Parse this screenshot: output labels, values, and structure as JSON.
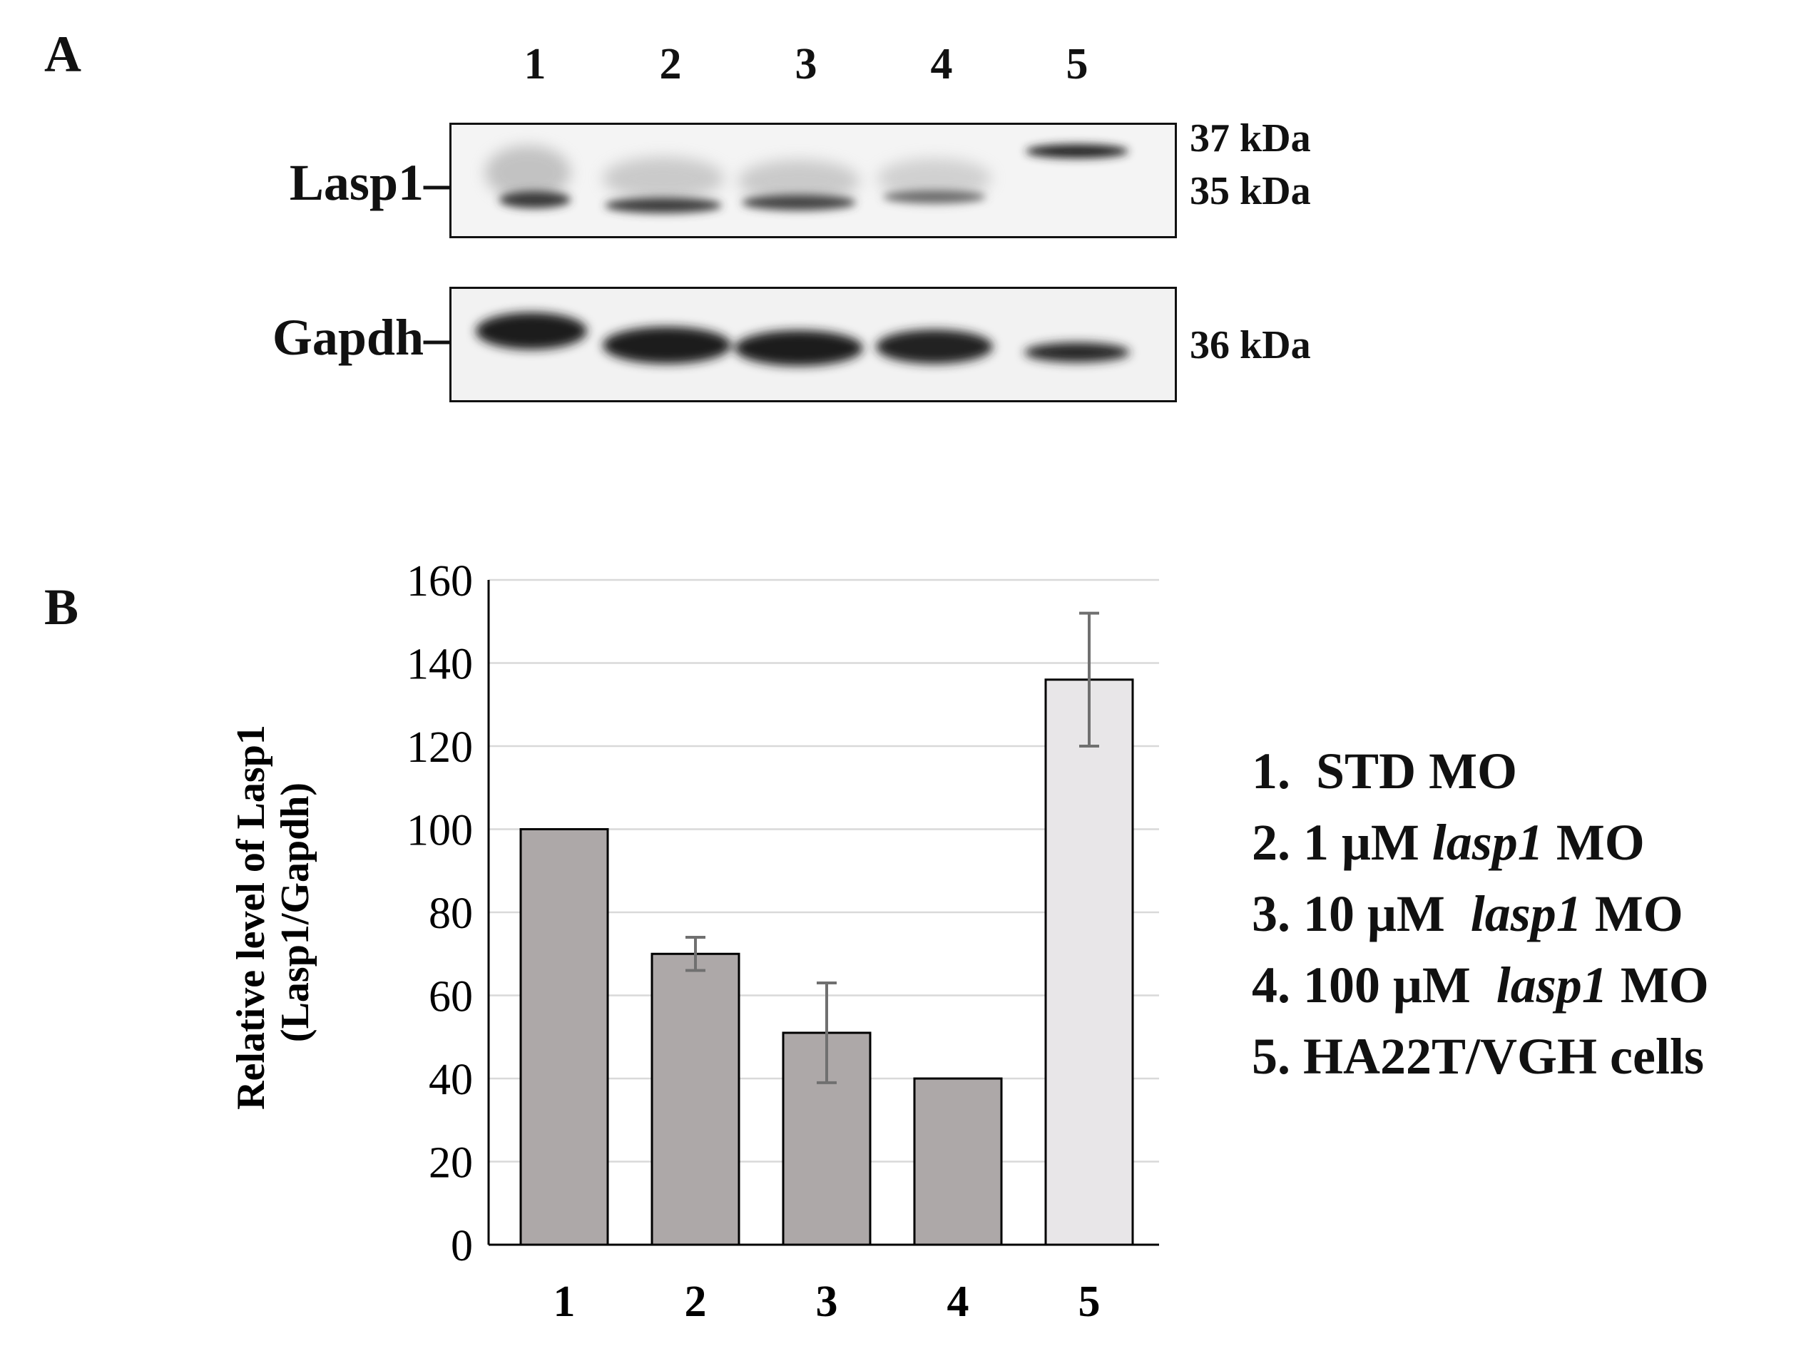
{
  "panel_a": {
    "letter": "A",
    "lanes": [
      "1",
      "2",
      "3",
      "4",
      "5"
    ],
    "blots": [
      {
        "label": "Lasp1–",
        "markers": [
          "37 kDa",
          "35 kDa"
        ]
      },
      {
        "label": "Gapdh–",
        "markers": [
          "36 kDa"
        ]
      }
    ]
  },
  "panel_b": {
    "letter": "B"
  },
  "legend": [
    {
      "prefix": "1.  STD MO",
      "italic": "",
      "suffix": ""
    },
    {
      "prefix": "2. 1 μM ",
      "italic": "lasp1",
      "suffix": " MO"
    },
    {
      "prefix": "3. 10 μM  ",
      "italic": "lasp1",
      "suffix": " MO"
    },
    {
      "prefix": "4. 100 μM  ",
      "italic": "lasp1",
      "suffix": " MO"
    },
    {
      "prefix": "5. HA22T/VGH cells",
      "italic": "",
      "suffix": ""
    }
  ],
  "colors": {
    "bar_dark": "#ada8a8",
    "bar_light": "#e8e6e8",
    "grid": "#d9d9d9",
    "errorbar": "#707070"
  },
  "chart_data": {
    "type": "bar",
    "categories": [
      "1",
      "2",
      "3",
      "4",
      "5"
    ],
    "values": [
      100,
      70,
      51,
      40,
      136
    ],
    "errors": [
      0,
      4,
      12,
      0,
      16
    ],
    "ylabel_lines": [
      "Relative level of Lasp1",
      "(Lasp1/Gapdh)"
    ],
    "ylim": [
      0,
      160
    ],
    "yticks": [
      "0",
      "20",
      "40",
      "60",
      "80",
      "100",
      "120",
      "140",
      "160"
    ],
    "grid": true
  }
}
